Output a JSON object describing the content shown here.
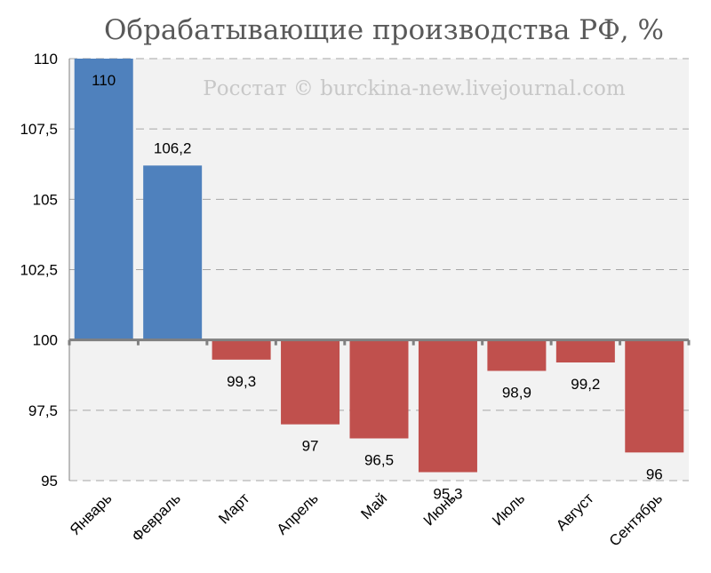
{
  "title": "Обрабатывающие производства РФ, %",
  "watermark": "Росстат © burckina-new.livejournal.com",
  "colors": {
    "positive": "#4f81bd",
    "negative": "#c0504d",
    "plot_bg": "#f2f2f2",
    "grid": "#a6a6a6",
    "axis": "#808080"
  },
  "chart_data": {
    "type": "bar",
    "title": "Обрабатывающие производства РФ, %",
    "baseline": 100,
    "ylim": [
      95,
      110
    ],
    "yticks": [
      95,
      97.5,
      100,
      102.5,
      105,
      107.5,
      110
    ],
    "ytick_labels": [
      "95",
      "97,5",
      "100",
      "102,5",
      "105",
      "107,5",
      "110"
    ],
    "grid": true,
    "categories": [
      "Январь",
      "Февраль",
      "Март",
      "Апрель",
      "Май",
      "Июнь",
      "Июль",
      "Август",
      "Сентябрь"
    ],
    "values": [
      110,
      106.2,
      99.3,
      97,
      96.5,
      95.3,
      98.9,
      99.2,
      96
    ],
    "value_labels": [
      "110",
      "106,2",
      "99,3",
      "97",
      "96,5",
      "95,3",
      "98,9",
      "99,2",
      "96"
    ]
  }
}
